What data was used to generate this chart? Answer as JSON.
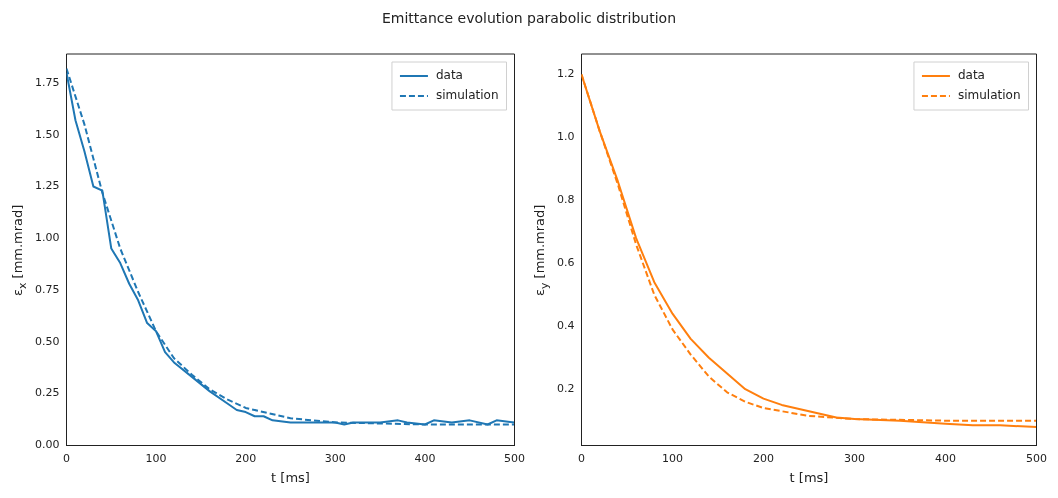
{
  "chart_data": [
    {
      "type": "line",
      "title": "Emittance evolution parabolic distribution",
      "xlabel": "t [ms]",
      "ylabel": "ε$_{x}$ [mm.mrad]",
      "xlim": [
        0,
        500
      ],
      "ylim": [
        0,
        1.89
      ],
      "xticks": [
        0,
        100,
        200,
        300,
        400,
        500
      ],
      "yticks": [
        {
          "value": 0,
          "label": "0.00"
        },
        0.25,
        {
          "value": 0.5,
          "label": "0.50"
        },
        0.75,
        {
          "value": 1,
          "label": "1.00"
        },
        1.25,
        {
          "value": 1.5,
          "label": "1.50"
        },
        1.75
      ],
      "legend": "top right",
      "grid": false,
      "series": [
        {
          "name": "data",
          "color": "#1f77b4",
          "line_style": "solid",
          "x": [
            0,
            10,
            20,
            30,
            40,
            50,
            60,
            70,
            80,
            90,
            100,
            110,
            120,
            140,
            160,
            180,
            190,
            200,
            210,
            220,
            230,
            250,
            270,
            300,
            310,
            320,
            350,
            370,
            380,
            400,
            410,
            430,
            450,
            470,
            480,
            500
          ],
          "values": [
            1.8,
            1.57,
            1.42,
            1.25,
            1.23,
            0.95,
            0.88,
            0.78,
            0.7,
            0.59,
            0.55,
            0.45,
            0.4,
            0.33,
            0.26,
            0.2,
            0.17,
            0.16,
            0.14,
            0.14,
            0.12,
            0.11,
            0.11,
            0.11,
            0.1,
            0.11,
            0.11,
            0.12,
            0.11,
            0.1,
            0.12,
            0.11,
            0.12,
            0.1,
            0.12,
            0.11
          ]
        },
        {
          "name": "simulation",
          "color": "#1f77b4",
          "line_style": "dashed",
          "x": [
            0,
            20,
            40,
            60,
            80,
            100,
            120,
            140,
            160,
            180,
            200,
            250,
            300,
            400,
            500
          ],
          "values": [
            1.82,
            1.55,
            1.22,
            0.95,
            0.74,
            0.55,
            0.42,
            0.34,
            0.27,
            0.22,
            0.18,
            0.13,
            0.11,
            0.1,
            0.1
          ]
        }
      ]
    },
    {
      "type": "line",
      "xlabel": "t [ms]",
      "ylabel": "ε$_{y}$ [mm.mrad]",
      "xlim": [
        0,
        500
      ],
      "ylim": [
        0.022,
        1.265
      ],
      "xticks": [
        0,
        100,
        200,
        300,
        400,
        500
      ],
      "yticks": [
        0.2,
        0.4,
        0.6,
        0.8,
        {
          "value": 1,
          "label": "1.0"
        },
        1.2
      ],
      "legend": "top right",
      "grid": false,
      "series": [
        {
          "name": "data",
          "color": "#ff7f0e",
          "line_style": "solid",
          "x": [
            0,
            20,
            40,
            60,
            80,
            100,
            120,
            140,
            160,
            180,
            200,
            220,
            250,
            280,
            300,
            350,
            400,
            430,
            460,
            500
          ],
          "values": [
            1.2,
            1.02,
            0.86,
            0.68,
            0.54,
            0.44,
            0.36,
            0.3,
            0.25,
            0.2,
            0.17,
            0.15,
            0.13,
            0.11,
            0.105,
            0.1,
            0.09,
            0.085,
            0.085,
            0.08
          ]
        },
        {
          "name": "simulation",
          "color": "#ff7f0e",
          "line_style": "dashed",
          "x": [
            0,
            20,
            40,
            60,
            80,
            100,
            120,
            140,
            160,
            180,
            200,
            250,
            300,
            400,
            500
          ],
          "values": [
            1.2,
            1.02,
            0.85,
            0.66,
            0.5,
            0.39,
            0.31,
            0.24,
            0.19,
            0.16,
            0.14,
            0.115,
            0.105,
            0.1,
            0.1
          ]
        }
      ]
    }
  ]
}
